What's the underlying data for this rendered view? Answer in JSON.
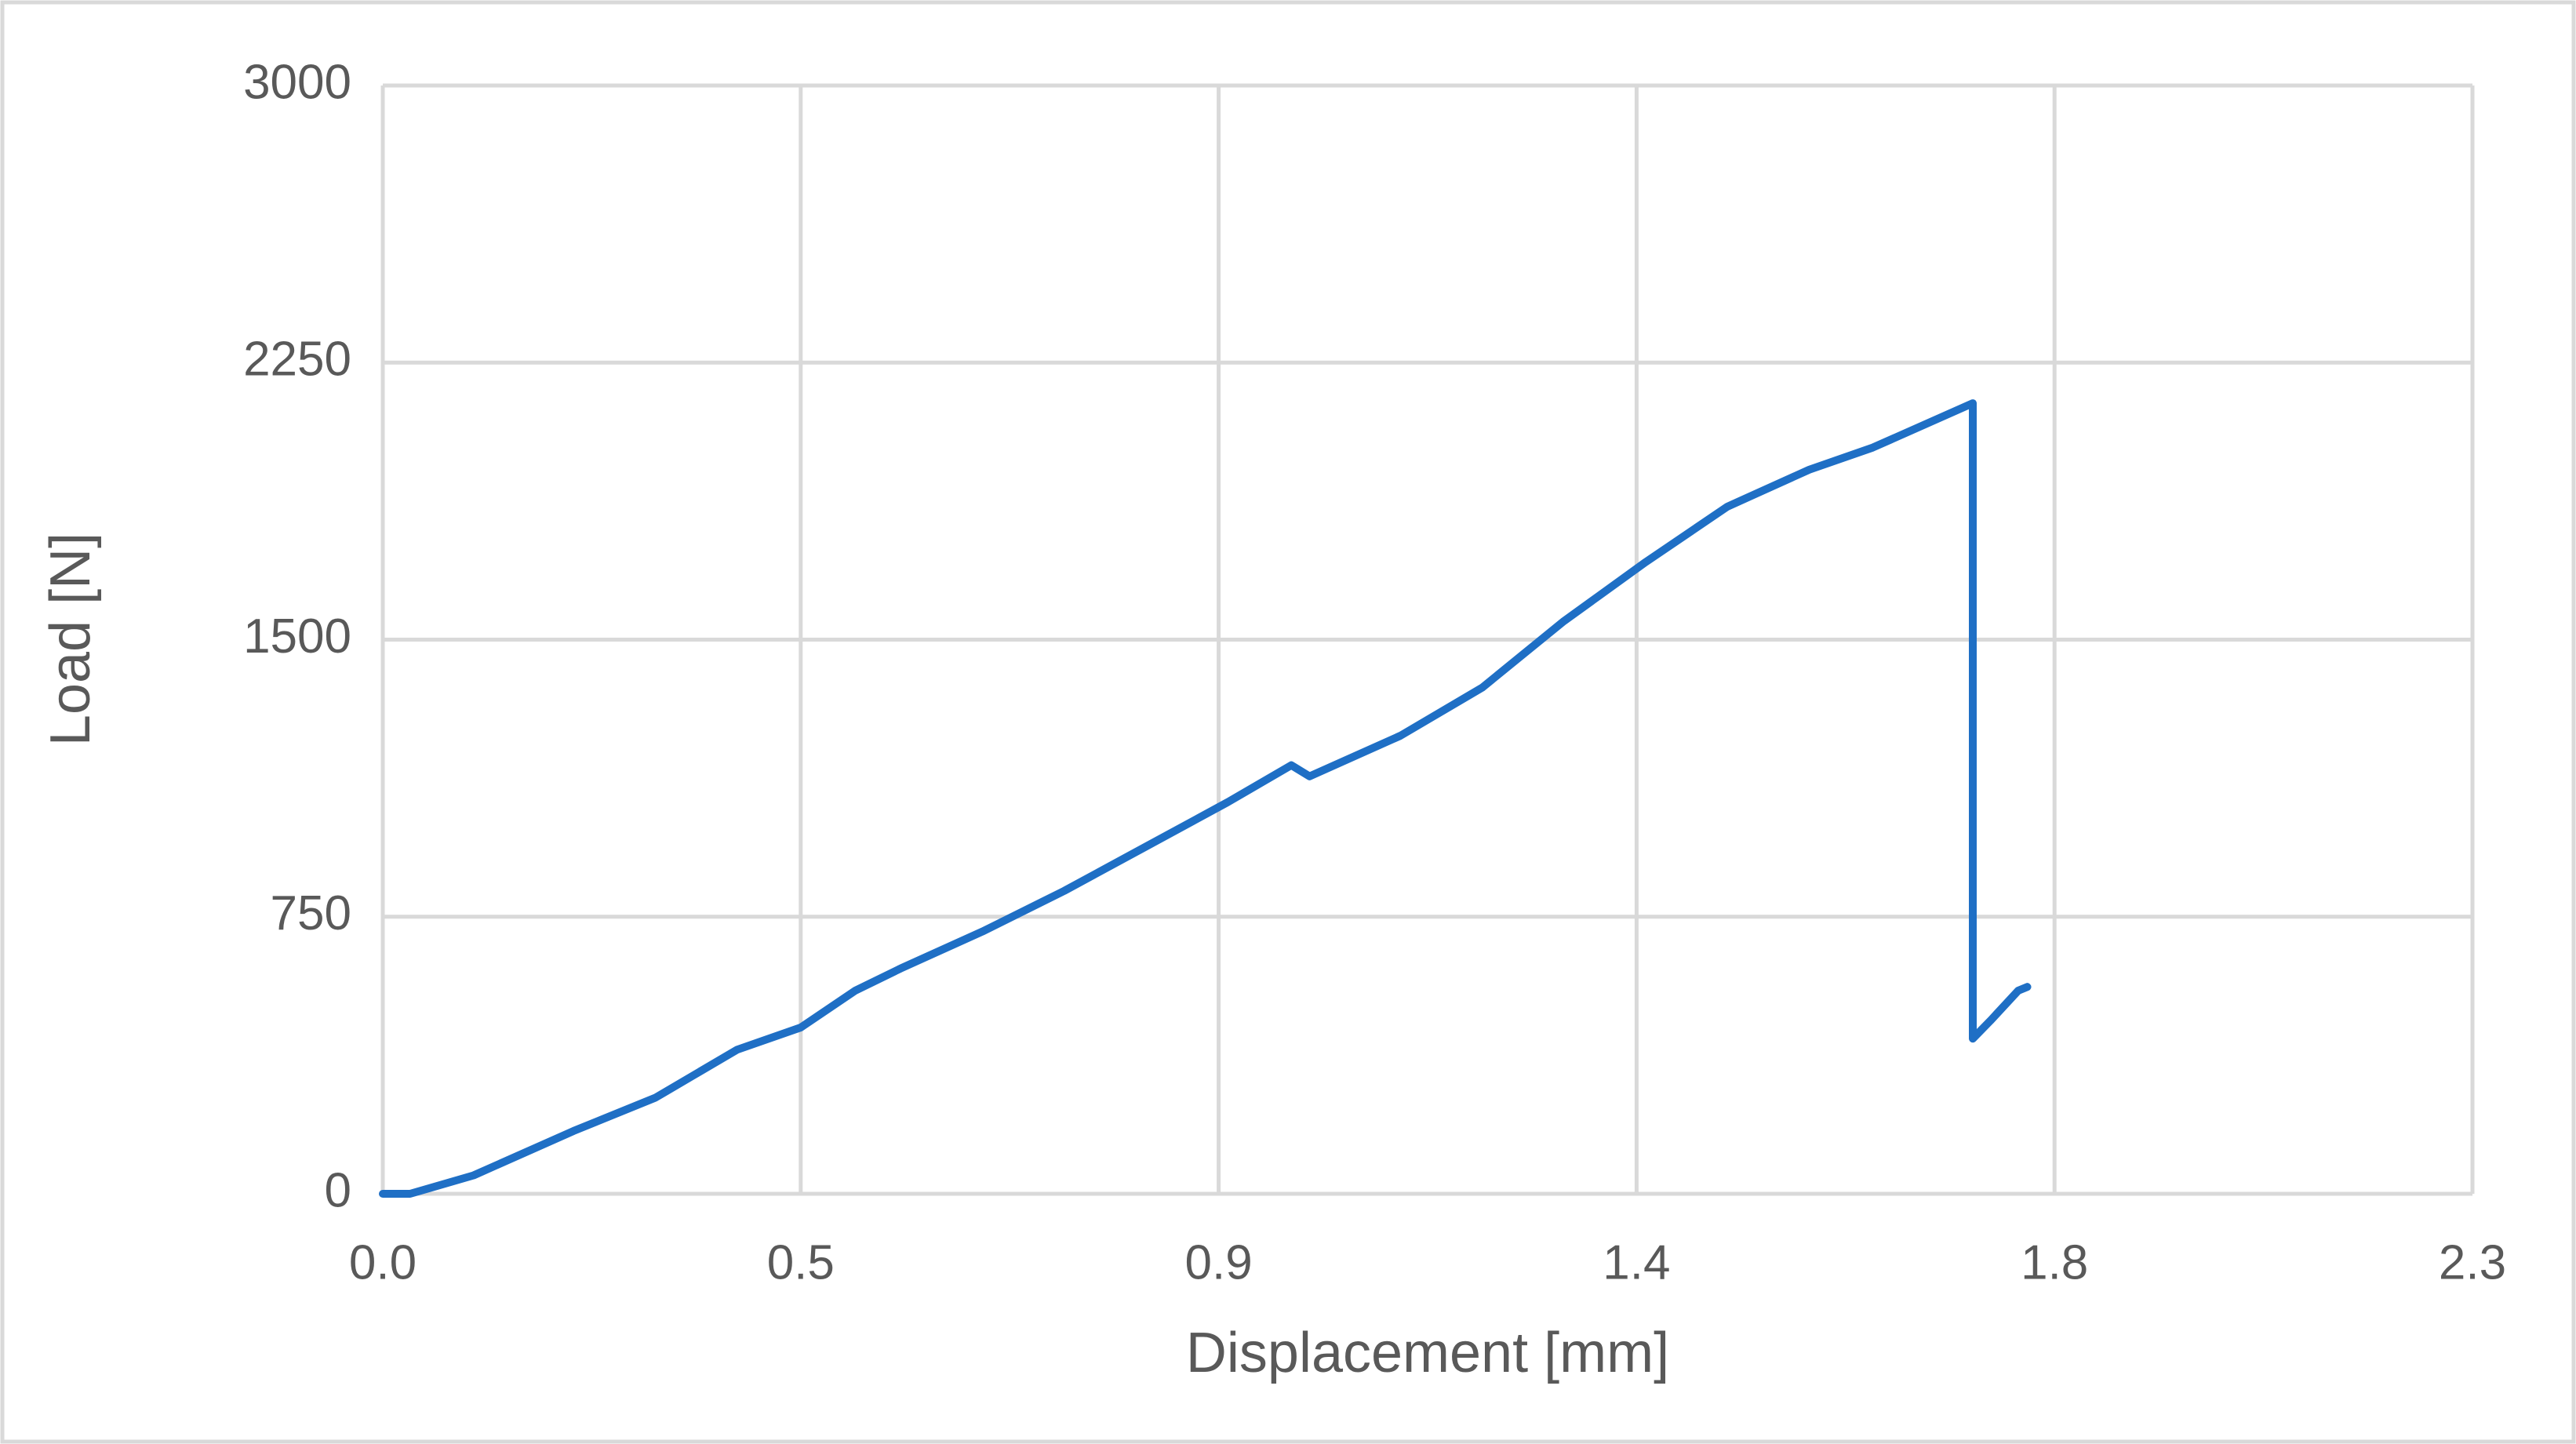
{
  "chart_data": {
    "type": "line",
    "x_label": "Displacement [mm]",
    "y_label": "Load [N]",
    "x": [
      0,
      0.03,
      0.1,
      0.21,
      0.3,
      0.39,
      0.46,
      0.52,
      0.57,
      0.66,
      0.75,
      0.84,
      0.93,
      1.0,
      1.02,
      1.12,
      1.21,
      1.3,
      1.39,
      1.48,
      1.57,
      1.64,
      1.75,
      1.75,
      1.77,
      1.8,
      1.81
    ],
    "series": [
      {
        "name": "Load",
        "color": "#1f6fc5",
        "values": [
          0,
          0,
          50,
          170,
          260,
          390,
          450,
          550,
          610,
          710,
          820,
          940,
          1060,
          1160,
          1130,
          1240,
          1370,
          1550,
          1710,
          1860,
          1960,
          2020,
          2140,
          420,
          470,
          550,
          560
        ]
      }
    ],
    "xlim": [
      0,
      2.3
    ],
    "xticks": [
      {
        "value": 0,
        "label": "0.0"
      },
      {
        "value": 0.46,
        "label": "0.5"
      },
      {
        "value": 0.92,
        "label": "0.9"
      },
      {
        "value": 1.38,
        "label": "1.4"
      },
      {
        "value": 1.84,
        "label": "1.8"
      },
      2.3
    ],
    "ylim": [
      0,
      3000
    ],
    "yticks": [
      0,
      750,
      1500,
      2250,
      3000
    ],
    "grid": true
  }
}
